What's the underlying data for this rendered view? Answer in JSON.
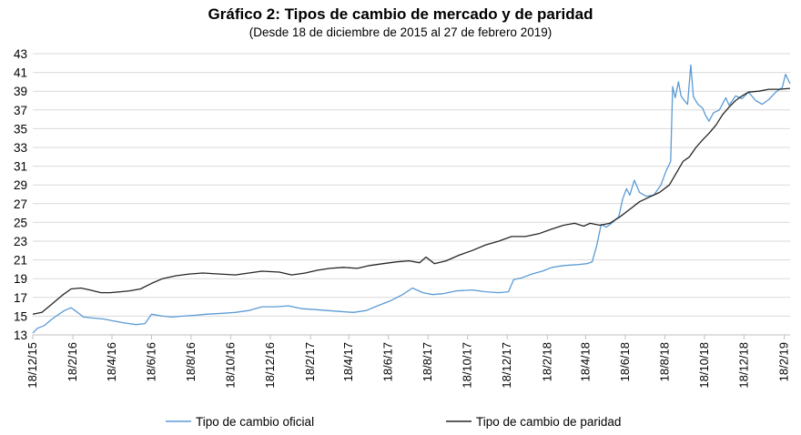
{
  "chart_data": {
    "type": "line",
    "title": "Gráfico 2: Tipos de cambio de mercado y de paridad",
    "subtitle": "(Desde 18 de diciembre de 2015 al 27 de febrero 2019)",
    "ylim": [
      13,
      43
    ],
    "yticks": [
      13,
      15,
      17,
      19,
      21,
      23,
      25,
      27,
      29,
      31,
      33,
      35,
      37,
      39,
      41,
      43
    ],
    "x_range": [
      "2015-12-18",
      "2019-02-27"
    ],
    "xtick_labels": [
      "18/12/15",
      "18/2/16",
      "18/4/16",
      "18/6/16",
      "18/8/16",
      "18/10/16",
      "18/12/16",
      "18/2/17",
      "18/4/17",
      "18/6/17",
      "18/8/17",
      "18/10/17",
      "18/12/17",
      "18/2/18",
      "18/4/18",
      "18/6/18",
      "18/8/18",
      "18/10/18",
      "18/12/18",
      "18/2/19"
    ],
    "xtick_dates": [
      "2015-12-18",
      "2016-02-18",
      "2016-04-18",
      "2016-06-18",
      "2016-08-18",
      "2016-10-18",
      "2016-12-18",
      "2017-02-18",
      "2017-04-18",
      "2017-06-18",
      "2017-08-18",
      "2017-10-18",
      "2017-12-18",
      "2018-02-18",
      "2018-04-18",
      "2018-06-18",
      "2018-08-18",
      "2018-10-18",
      "2018-12-18",
      "2019-02-18"
    ],
    "grid": true,
    "legend": "bottom",
    "series": [
      {
        "name": "Tipo de cambio oficial",
        "color": "#5b9bd5",
        "points": [
          [
            "2015-12-18",
            13.2
          ],
          [
            "2015-12-25",
            13.7
          ],
          [
            "2016-01-05",
            14.0
          ],
          [
            "2016-01-15",
            14.6
          ],
          [
            "2016-01-25",
            15.1
          ],
          [
            "2016-02-05",
            15.6
          ],
          [
            "2016-02-15",
            15.9
          ],
          [
            "2016-02-25",
            15.4
          ],
          [
            "2016-03-05",
            14.9
          ],
          [
            "2016-03-20",
            14.8
          ],
          [
            "2016-04-05",
            14.7
          ],
          [
            "2016-04-20",
            14.5
          ],
          [
            "2016-05-05",
            14.3
          ],
          [
            "2016-05-25",
            14.1
          ],
          [
            "2016-06-08",
            14.2
          ],
          [
            "2016-06-18",
            15.2
          ],
          [
            "2016-07-05",
            15.0
          ],
          [
            "2016-07-20",
            14.9
          ],
          [
            "2016-08-05",
            15.0
          ],
          [
            "2016-08-25",
            15.1
          ],
          [
            "2016-09-10",
            15.2
          ],
          [
            "2016-10-05",
            15.3
          ],
          [
            "2016-10-25",
            15.4
          ],
          [
            "2016-11-15",
            15.6
          ],
          [
            "2016-12-05",
            16.0
          ],
          [
            "2016-12-25",
            16.0
          ],
          [
            "2017-01-15",
            16.1
          ],
          [
            "2017-02-05",
            15.8
          ],
          [
            "2017-02-25",
            15.7
          ],
          [
            "2017-03-15",
            15.6
          ],
          [
            "2017-04-05",
            15.5
          ],
          [
            "2017-04-25",
            15.4
          ],
          [
            "2017-05-15",
            15.6
          ],
          [
            "2017-06-01",
            16.1
          ],
          [
            "2017-06-20",
            16.6
          ],
          [
            "2017-07-10",
            17.3
          ],
          [
            "2017-07-25",
            18.0
          ],
          [
            "2017-08-10",
            17.5
          ],
          [
            "2017-08-25",
            17.3
          ],
          [
            "2017-09-10",
            17.4
          ],
          [
            "2017-10-01",
            17.7
          ],
          [
            "2017-10-25",
            17.8
          ],
          [
            "2017-11-15",
            17.6
          ],
          [
            "2017-12-05",
            17.5
          ],
          [
            "2017-12-20",
            17.6
          ],
          [
            "2017-12-28",
            18.9
          ],
          [
            "2018-01-10",
            19.1
          ],
          [
            "2018-01-25",
            19.5
          ],
          [
            "2018-02-10",
            19.8
          ],
          [
            "2018-02-25",
            20.2
          ],
          [
            "2018-03-15",
            20.4
          ],
          [
            "2018-04-05",
            20.5
          ],
          [
            "2018-04-20",
            20.6
          ],
          [
            "2018-04-28",
            20.8
          ],
          [
            "2018-05-05",
            22.5
          ],
          [
            "2018-05-12",
            24.8
          ],
          [
            "2018-05-20",
            24.5
          ],
          [
            "2018-05-28",
            24.9
          ],
          [
            "2018-06-08",
            25.6
          ],
          [
            "2018-06-14",
            27.5
          ],
          [
            "2018-06-20",
            28.6
          ],
          [
            "2018-06-25",
            27.9
          ],
          [
            "2018-07-02",
            29.5
          ],
          [
            "2018-07-10",
            28.2
          ],
          [
            "2018-07-20",
            27.8
          ],
          [
            "2018-08-01",
            27.9
          ],
          [
            "2018-08-12",
            29.0
          ],
          [
            "2018-08-20",
            30.5
          ],
          [
            "2018-08-27",
            31.5
          ],
          [
            "2018-08-30",
            39.5
          ],
          [
            "2018-09-03",
            38.3
          ],
          [
            "2018-09-08",
            40.0
          ],
          [
            "2018-09-12",
            38.5
          ],
          [
            "2018-09-17",
            38.0
          ],
          [
            "2018-09-22",
            37.6
          ],
          [
            "2018-09-27",
            41.8
          ],
          [
            "2018-10-01",
            38.4
          ],
          [
            "2018-10-08",
            37.6
          ],
          [
            "2018-10-15",
            37.2
          ],
          [
            "2018-10-20",
            36.4
          ],
          [
            "2018-10-25",
            35.8
          ],
          [
            "2018-11-01",
            36.7
          ],
          [
            "2018-11-10",
            37.0
          ],
          [
            "2018-11-20",
            38.3
          ],
          [
            "2018-11-25",
            37.5
          ],
          [
            "2018-12-05",
            38.5
          ],
          [
            "2018-12-15",
            38.2
          ],
          [
            "2018-12-25",
            38.9
          ],
          [
            "2019-01-05",
            38.0
          ],
          [
            "2019-01-15",
            37.6
          ],
          [
            "2019-01-25",
            38.1
          ],
          [
            "2019-02-05",
            38.9
          ],
          [
            "2019-02-15",
            39.4
          ],
          [
            "2019-02-20",
            40.8
          ],
          [
            "2019-02-27",
            39.8
          ]
        ]
      },
      {
        "name": "Tipo de cambio de paridad",
        "color": "#262626",
        "points": [
          [
            "2015-12-18",
            15.2
          ],
          [
            "2016-01-01",
            15.4
          ],
          [
            "2016-01-15",
            16.2
          ],
          [
            "2016-02-01",
            17.2
          ],
          [
            "2016-02-15",
            17.9
          ],
          [
            "2016-03-01",
            18.0
          ],
          [
            "2016-03-15",
            17.8
          ],
          [
            "2016-04-01",
            17.5
          ],
          [
            "2016-04-15",
            17.5
          ],
          [
            "2016-05-01",
            17.6
          ],
          [
            "2016-05-15",
            17.7
          ],
          [
            "2016-06-01",
            17.9
          ],
          [
            "2016-06-18",
            18.5
          ],
          [
            "2016-07-05",
            19.0
          ],
          [
            "2016-07-25",
            19.3
          ],
          [
            "2016-08-15",
            19.5
          ],
          [
            "2016-09-05",
            19.6
          ],
          [
            "2016-10-01",
            19.5
          ],
          [
            "2016-10-25",
            19.4
          ],
          [
            "2016-11-15",
            19.6
          ],
          [
            "2016-12-05",
            19.8
          ],
          [
            "2017-01-01",
            19.7
          ],
          [
            "2017-01-20",
            19.4
          ],
          [
            "2017-02-10",
            19.6
          ],
          [
            "2017-03-01",
            19.9
          ],
          [
            "2017-03-20",
            20.1
          ],
          [
            "2017-04-10",
            20.2
          ],
          [
            "2017-05-01",
            20.1
          ],
          [
            "2017-05-20",
            20.4
          ],
          [
            "2017-06-10",
            20.6
          ],
          [
            "2017-07-01",
            20.8
          ],
          [
            "2017-07-20",
            20.9
          ],
          [
            "2017-08-05",
            20.7
          ],
          [
            "2017-08-15",
            21.3
          ],
          [
            "2017-08-28",
            20.6
          ],
          [
            "2017-09-15",
            20.9
          ],
          [
            "2017-10-05",
            21.5
          ],
          [
            "2017-10-25",
            22.0
          ],
          [
            "2017-11-15",
            22.6
          ],
          [
            "2017-12-05",
            23.0
          ],
          [
            "2017-12-25",
            23.5
          ],
          [
            "2018-01-15",
            23.5
          ],
          [
            "2018-02-05",
            23.8
          ],
          [
            "2018-02-25",
            24.3
          ],
          [
            "2018-03-15",
            24.7
          ],
          [
            "2018-04-01",
            24.9
          ],
          [
            "2018-04-15",
            24.6
          ],
          [
            "2018-04-25",
            24.9
          ],
          [
            "2018-05-10",
            24.7
          ],
          [
            "2018-05-25",
            24.9
          ],
          [
            "2018-06-10",
            25.6
          ],
          [
            "2018-06-25",
            26.4
          ],
          [
            "2018-07-10",
            27.2
          ],
          [
            "2018-07-25",
            27.7
          ],
          [
            "2018-08-10",
            28.2
          ],
          [
            "2018-08-25",
            29.0
          ],
          [
            "2018-09-05",
            30.3
          ],
          [
            "2018-09-15",
            31.5
          ],
          [
            "2018-09-25",
            32.0
          ],
          [
            "2018-10-05",
            33.0
          ],
          [
            "2018-10-15",
            33.8
          ],
          [
            "2018-10-25",
            34.5
          ],
          [
            "2018-11-05",
            35.4
          ],
          [
            "2018-11-15",
            36.5
          ],
          [
            "2018-11-25",
            37.3
          ],
          [
            "2018-12-05",
            38.0
          ],
          [
            "2018-12-15",
            38.5
          ],
          [
            "2018-12-25",
            38.9
          ],
          [
            "2019-01-10",
            39.0
          ],
          [
            "2019-01-25",
            39.2
          ],
          [
            "2019-02-10",
            39.2
          ],
          [
            "2019-02-27",
            39.3
          ]
        ]
      }
    ]
  }
}
